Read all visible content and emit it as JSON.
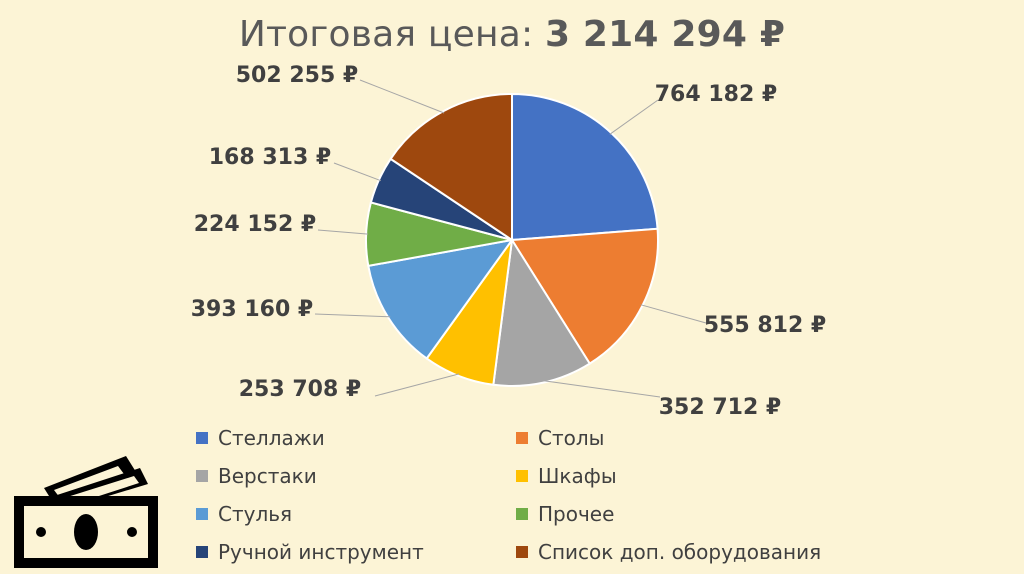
{
  "title": {
    "prefix": "Итоговая цена: ",
    "total": "3 214 294 ₽"
  },
  "chart_data": {
    "type": "pie",
    "currency_suffix": " ₽",
    "slices": [
      {
        "name": "Стеллажи",
        "value": 764182,
        "label": "764 182 ₽",
        "color": "#4472c4"
      },
      {
        "name": "Столы",
        "value": 555812,
        "label": "555 812 ₽",
        "color": "#ed7d31"
      },
      {
        "name": "Верстаки",
        "value": 352712,
        "label": "352 712 ₽",
        "color": "#a5a5a5"
      },
      {
        "name": "Шкафы",
        "value": 253708,
        "label": "253 708 ₽",
        "color": "#ffc000"
      },
      {
        "name": "Стулья",
        "value": 393160,
        "label": "393 160 ₽",
        "color": "#5b9bd5"
      },
      {
        "name": "Прочее",
        "value": 224152,
        "label": "224 152 ₽",
        "color": "#70ad47"
      },
      {
        "name": "Ручной инструмент",
        "value": 168313,
        "label": "168 313 ₽",
        "color": "#264478"
      },
      {
        "name": "Список доп. оборудования",
        "value": 502255,
        "label": "502 255 ₽",
        "color": "#9e480e"
      }
    ],
    "legend_position": "bottom"
  },
  "legend": {
    "items": [
      {
        "label": "Стеллажи",
        "color": "#4472c4"
      },
      {
        "label": "Столы",
        "color": "#ed7d31"
      },
      {
        "label": "Верстаки",
        "color": "#a5a5a5"
      },
      {
        "label": "Шкафы",
        "color": "#ffc000"
      },
      {
        "label": "Стулья",
        "color": "#5b9bd5"
      },
      {
        "label": "Прочее",
        "color": "#70ad47"
      },
      {
        "label": "Ручной инструмент",
        "color": "#264478"
      },
      {
        "label": "Список доп. оборудования",
        "color": "#9e480e"
      }
    ]
  },
  "icons": {
    "decoration": "banknote-stack-icon"
  }
}
